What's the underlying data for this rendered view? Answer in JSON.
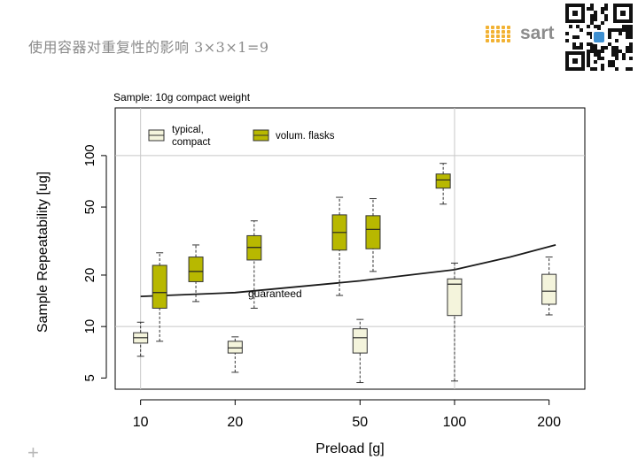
{
  "slide": {
    "title": "使用容器对重复性的影响  3×3×1=9"
  },
  "logo": {
    "text": "sart",
    "icon": "logo-dots-icon"
  },
  "qr_code": {
    "icon": "qr-code-icon"
  },
  "decoration": {
    "plus_symbol": "+"
  },
  "colors": {
    "typical_fill": "#f4f4dc",
    "volum_fill": "#b8b800",
    "grid": "#c8c8c8",
    "axis": "#000000",
    "curve": "#1a1a1a",
    "whisker": "#333333"
  },
  "chart_data": {
    "type": "boxplot",
    "title": "Sample: 10g compact weight",
    "xlabel": "Preload  [g]",
    "ylabel": "Sample Repeatability  [ug]",
    "x_scale": "log",
    "y_scale": "log",
    "xlim": [
      8.3,
      260
    ],
    "ylim": [
      4.3,
      190
    ],
    "x_ticks": [
      10,
      20,
      50,
      100,
      200
    ],
    "x_tick_labels": [
      "10",
      "20",
      "50",
      "100",
      "200"
    ],
    "y_ticks": [
      5,
      10,
      20,
      50,
      100
    ],
    "y_tick_labels": [
      "5",
      "10",
      "20",
      "50",
      "100"
    ],
    "grid_x": [
      10,
      100
    ],
    "grid_y": [
      10,
      100
    ],
    "legend": {
      "position": "top-left",
      "entries": [
        {
          "label_lines": [
            "typical,",
            "compact"
          ],
          "series": "typical"
        },
        {
          "label_lines": [
            "volum. flasks"
          ],
          "series": "volum"
        }
      ]
    },
    "series": [
      {
        "name": "typical, compact",
        "key": "typical",
        "boxes": [
          {
            "x": 10,
            "min": 6.7,
            "q1": 8.0,
            "median": 8.6,
            "q3": 9.2,
            "max": 10.6
          },
          {
            "x": 20,
            "min": 5.4,
            "q1": 7.0,
            "median": 7.5,
            "q3": 8.2,
            "max": 8.7
          },
          {
            "x": 50,
            "min": 4.7,
            "q1": 7.0,
            "median": 8.6,
            "q3": 9.7,
            "max": 11.0
          },
          {
            "x": 100,
            "min": 4.8,
            "q1": 11.6,
            "median": 17.7,
            "q3": 19.0,
            "max": 23.5
          },
          {
            "x": 200,
            "min": 11.7,
            "q1": 13.5,
            "median": 16.1,
            "q3": 20.2,
            "max": 25.5
          }
        ]
      },
      {
        "name": "volum. flasks",
        "key": "volum",
        "boxes": [
          {
            "x": 11.5,
            "min": 8.2,
            "q1": 12.8,
            "median": 15.8,
            "q3": 22.8,
            "max": 27.0
          },
          {
            "x": 15,
            "min": 14.0,
            "q1": 18.3,
            "median": 21.0,
            "q3": 25.5,
            "max": 30.0
          },
          {
            "x": 23,
            "min": 12.8,
            "q1": 24.5,
            "median": 29.0,
            "q3": 34.0,
            "max": 41.5
          },
          {
            "x": 43,
            "min": 15.2,
            "q1": 28.0,
            "median": 35.5,
            "q3": 45.0,
            "max": 57.0
          },
          {
            "x": 55,
            "min": 21.0,
            "q1": 28.5,
            "median": 37.0,
            "q3": 44.5,
            "max": 56.0
          },
          {
            "x": 92,
            "min": 52.0,
            "q1": 64.5,
            "median": 72.0,
            "q3": 78.0,
            "max": 90.0
          }
        ]
      }
    ],
    "guaranteed_curve": {
      "label": "guaranteed",
      "label_at": {
        "x": 22,
        "y": 14.8
      },
      "points": [
        [
          10,
          15
        ],
        [
          20,
          15.8
        ],
        [
          50,
          18.5
        ],
        [
          100,
          21.5
        ],
        [
          150,
          25.5
        ],
        [
          210,
          30
        ]
      ]
    }
  }
}
